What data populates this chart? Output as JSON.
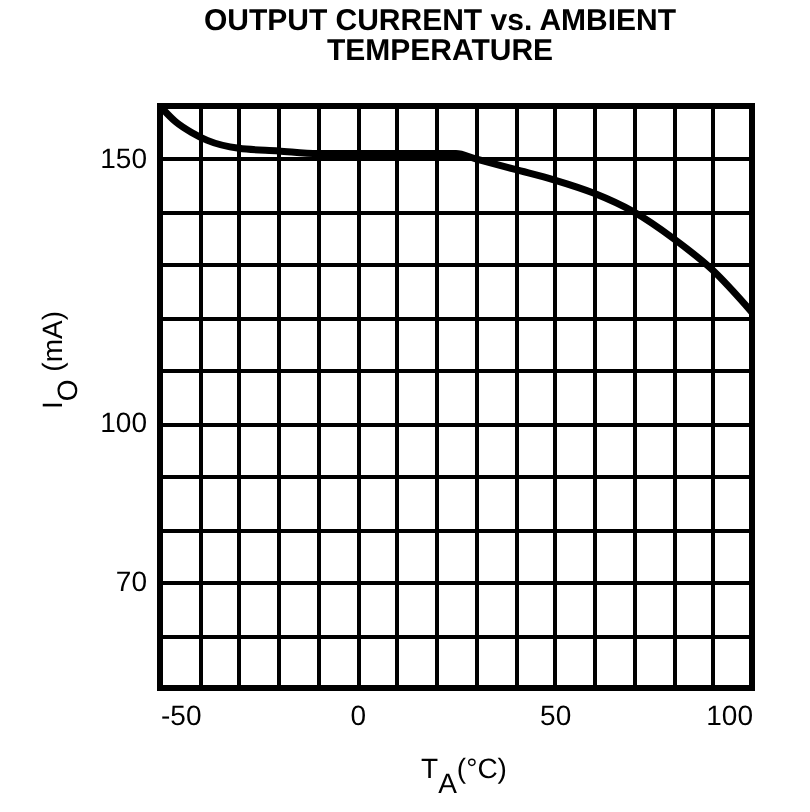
{
  "chart_data": {
    "type": "line",
    "title": "OUTPUT CURRENT vs. AMBIENT TEMPERATURE",
    "xlabel": "T$_{A}$(°C)",
    "ylabel": "I$_{O}$ (mA)",
    "x": [
      -50,
      -46,
      -42,
      -38,
      -30,
      -20,
      -10,
      0,
      10,
      20,
      25,
      30,
      40,
      50,
      60,
      70,
      80,
      90,
      100
    ],
    "values": [
      160,
      157,
      155,
      153.5,
      152,
      151.5,
      151,
      151,
      151,
      151,
      151,
      150,
      148,
      146,
      143.5,
      140,
      135,
      129,
      121
    ],
    "color": "#000000",
    "xlim": [
      -50,
      100
    ],
    "ylim": [
      50,
      160
    ],
    "xticks": [
      -50,
      {
        "value": -40,
        "label": null
      },
      {
        "value": -30,
        "label": null
      },
      {
        "value": -20,
        "label": null
      },
      {
        "value": -10,
        "label": null
      },
      0,
      {
        "value": 10,
        "label": null
      },
      {
        "value": 20,
        "label": null
      },
      {
        "value": 30,
        "label": null
      },
      {
        "value": 40,
        "label": null
      },
      50,
      {
        "value": 60,
        "label": null
      },
      {
        "value": 70,
        "label": null
      },
      {
        "value": 80,
        "label": null
      },
      {
        "value": 90,
        "label": null
      },
      100
    ],
    "yticks": [
      {
        "value": 60,
        "label": null
      },
      70,
      {
        "value": 80,
        "label": null
      },
      {
        "value": 90,
        "label": null
      },
      100,
      {
        "value": 110,
        "label": null
      },
      {
        "value": 120,
        "label": null
      },
      {
        "value": 130,
        "label": null
      },
      {
        "value": 140,
        "label": null
      },
      150
    ],
    "grid": true
  }
}
